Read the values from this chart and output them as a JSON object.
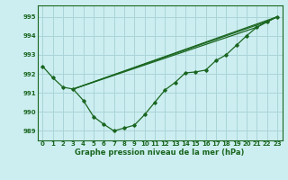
{
  "title": "Graphe pression niveau de la mer (hPa)",
  "bg_color": "#cceef0",
  "grid_color": "#aad4d8",
  "line_color": "#1a6620",
  "xlim": [
    -0.5,
    23.5
  ],
  "ylim": [
    988.5,
    995.6
  ],
  "yticks": [
    989,
    990,
    991,
    992,
    993,
    994,
    995
  ],
  "xticks": [
    0,
    1,
    2,
    3,
    4,
    5,
    6,
    7,
    8,
    9,
    10,
    11,
    12,
    13,
    14,
    15,
    16,
    17,
    18,
    19,
    20,
    21,
    22,
    23
  ],
  "line1_x": [
    0,
    1,
    2,
    3,
    4,
    5,
    6,
    7,
    8,
    9,
    10,
    11,
    12,
    13,
    14,
    15,
    16,
    17,
    18,
    19,
    20,
    21,
    22,
    23
  ],
  "line1_y": [
    992.4,
    991.8,
    991.3,
    991.2,
    990.6,
    989.75,
    989.35,
    989.0,
    989.15,
    989.3,
    989.85,
    990.5,
    991.15,
    991.55,
    992.05,
    992.1,
    992.2,
    992.7,
    993.0,
    993.5,
    994.0,
    994.45,
    994.75,
    995.0
  ],
  "line2_x": [
    3,
    23
  ],
  "line2_y": [
    991.2,
    995.0
  ],
  "line3_x": [
    3,
    22,
    23
  ],
  "line3_y": [
    991.2,
    994.75,
    995.0
  ],
  "line4_x": [
    3,
    21,
    23
  ],
  "line4_y": [
    991.2,
    994.45,
    995.0
  ]
}
